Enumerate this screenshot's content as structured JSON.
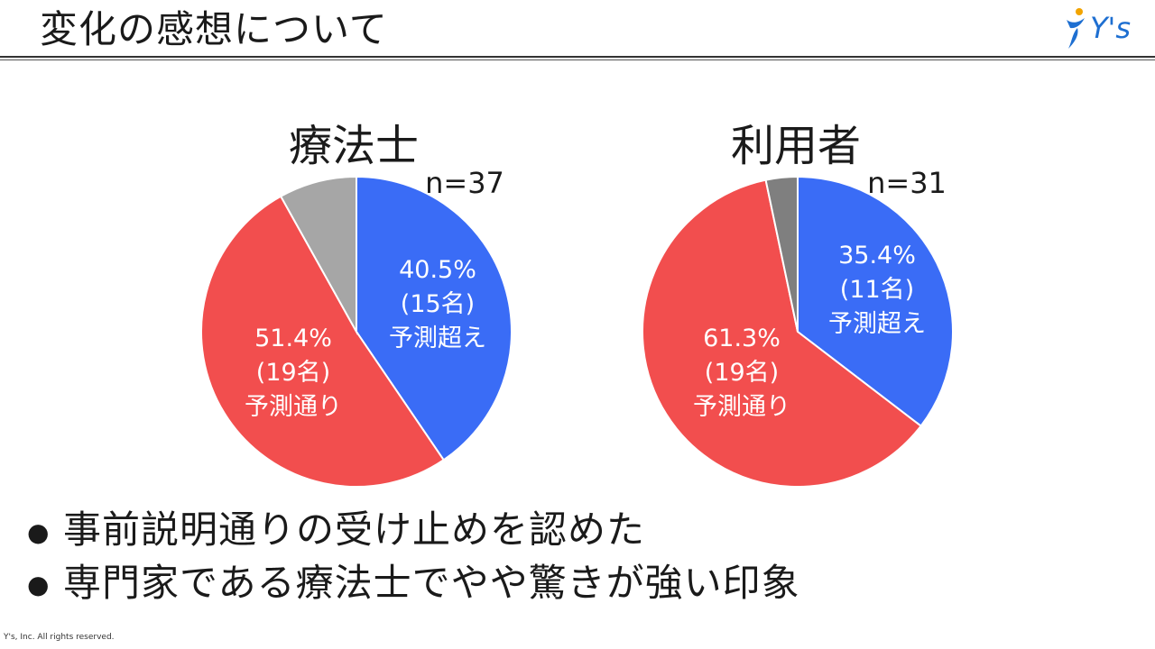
{
  "slide": {
    "title": "変化の感想について",
    "logo_text": "Y's",
    "footer": "Y's, Inc.  All rights reserved."
  },
  "bullets": [
    "事前説明通りの受け止めを認めた",
    "専門家である療法士でやや驚きが強い印象"
  ],
  "colors": {
    "blue": "#3a6cf6",
    "red": "#f24e4e",
    "gray_light": "#a6a6a6",
    "gray_dark": "#7f7f7f"
  },
  "chart_data": [
    {
      "type": "pie",
      "title": "療法士",
      "n_label": "n=37",
      "slices": [
        {
          "value": 40.5,
          "color": "#3a6cf6",
          "label_lines": [
            "40.5%",
            "(15名)",
            "予測超え"
          ]
        },
        {
          "value": 51.4,
          "color": "#f24e4e",
          "label_lines": [
            "51.4%",
            "(19名)",
            "予測通り"
          ]
        },
        {
          "value": 8.1,
          "color": "#a6a6a6",
          "label_lines": []
        }
      ]
    },
    {
      "type": "pie",
      "title": "利用者",
      "n_label": "n=31",
      "slices": [
        {
          "value": 35.4,
          "color": "#3a6cf6",
          "label_lines": [
            "35.4%",
            "(11名)",
            "予測超え"
          ]
        },
        {
          "value": 61.3,
          "color": "#f24e4e",
          "label_lines": [
            "61.3%",
            "(19名)",
            "予測通り"
          ]
        },
        {
          "value": 3.3,
          "color": "#7f7f7f",
          "label_lines": []
        }
      ]
    }
  ]
}
